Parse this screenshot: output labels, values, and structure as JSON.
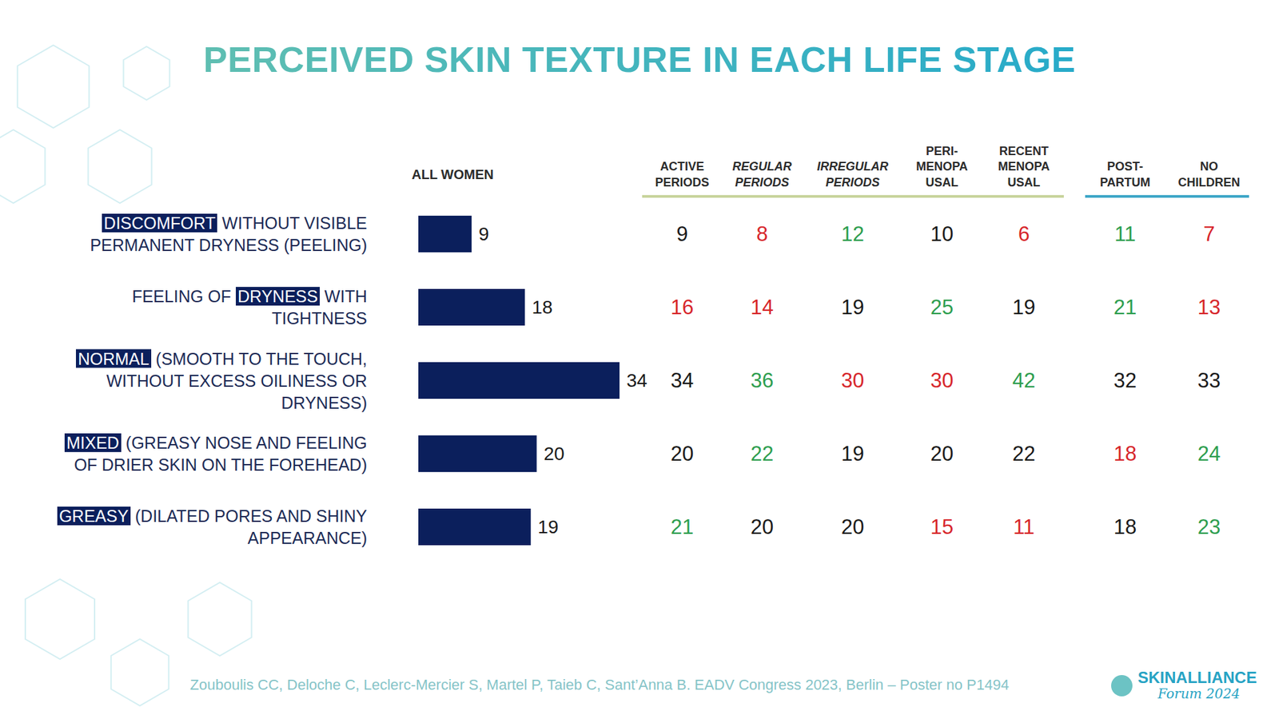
{
  "title": "PERCEIVED SKIN TEXTURE IN EACH LIFE STAGE",
  "chart_data": {
    "type": "bar",
    "orientation": "horizontal",
    "data_labels": true,
    "tick_labels": "y",
    "categories": [
      "DISCOMFORT WITHOUT VISIBLE PERMANENT DRYNESS (PEELING)",
      "FEELING OF DRYNESS WITH TIGHTNESS",
      "NORMAL (SMOOTH TO THE TOUCH, WITHOUT EXCESS OILINESS OR DRYNESS)",
      "MIXED (GREASY NOSE AND FEELING OF DRIER SKIN ON THE FOREHEAD)",
      "GREASY (DILATED PORES AND SHINY APPEARANCE)"
    ],
    "category_highlights": [
      "DISCOMFORT",
      "DRYNESS",
      "NORMAL",
      "MIXED",
      "GREASY"
    ],
    "series": [
      {
        "name": "ALL WOMEN",
        "color": "#0b1f5c",
        "values": [
          9,
          18,
          34,
          20,
          19
        ]
      }
    ]
  },
  "table": {
    "groups": [
      {
        "color": "#c8d49c",
        "columns": [
          {
            "label": "ACTIVE PERIODS",
            "values": [
              9,
              16,
              34,
              20,
              21
            ],
            "colors": [
              "#1a1a1a",
              "#d7262b",
              "#1a1a1a",
              "#1a1a1a",
              "#2e9e4f"
            ]
          },
          {
            "label": "REGULAR PERIODS",
            "font_style": "italic",
            "values": [
              8,
              14,
              36,
              22,
              20
            ],
            "colors": [
              "#d7262b",
              "#d7262b",
              "#2e9e4f",
              "#2e9e4f",
              "#1a1a1a"
            ]
          },
          {
            "label": "IRREGULAR PERIODS",
            "font_style": "italic",
            "values": [
              12,
              19,
              30,
              19,
              20
            ],
            "colors": [
              "#2e9e4f",
              "#1a1a1a",
              "#d7262b",
              "#1a1a1a",
              "#1a1a1a"
            ]
          },
          {
            "label": "PERI-MENOPAUSAL",
            "values": [
              10,
              25,
              30,
              20,
              15
            ],
            "colors": [
              "#1a1a1a",
              "#2e9e4f",
              "#d7262b",
              "#1a1a1a",
              "#d7262b"
            ]
          },
          {
            "label": "RECENT MENOPAUSAL",
            "values": [
              6,
              19,
              42,
              22,
              11
            ],
            "colors": [
              "#d7262b",
              "#1a1a1a",
              "#2e9e4f",
              "#1a1a1a",
              "#d7262b"
            ]
          }
        ]
      },
      {
        "color": "#3fa7c8",
        "columns": [
          {
            "label": "POST-PARTUM",
            "values": [
              11,
              21,
              32,
              18,
              18
            ],
            "colors": [
              "#2e9e4f",
              "#2e9e4f",
              "#1a1a1a",
              "#d7262b",
              "#1a1a1a"
            ]
          },
          {
            "label": "NO CHILDREN",
            "values": [
              7,
              13,
              33,
              24,
              23
            ],
            "colors": [
              "#d7262b",
              "#d7262b",
              "#1a1a1a",
              "#2e9e4f",
              "#2e9e4f"
            ]
          }
        ]
      }
    ]
  },
  "source": "Zouboulis CC, Deloche C, Leclerc-Mercier S, Martel P, Taieb C, Sant’Anna B. EADV Congress 2023, Berlin – Poster no P1494",
  "logo": {
    "name": "SKINALLIANCE",
    "subtitle": "Forum 2024"
  }
}
